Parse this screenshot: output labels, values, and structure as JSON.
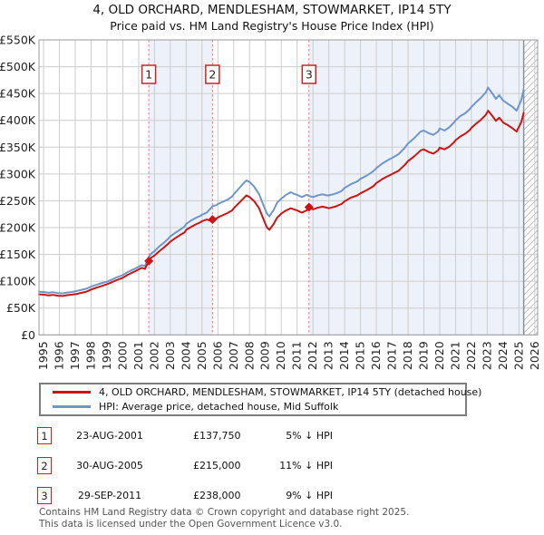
{
  "title": {
    "line1": "4, OLD ORCHARD, MENDLESHAM, STOWMARKET, IP14 5TY",
    "line2": "Price paid vs. HM Land Registry's House Price Index (HPI)"
  },
  "chart_data": {
    "type": "line",
    "unit": "GBP thousands",
    "x_domain": [
      1994.71,
      2026.18
    ],
    "y_domain": [
      0,
      550
    ],
    "grid": true,
    "x_ticks": [
      1995,
      1996,
      1997,
      1998,
      1999,
      2000,
      2001,
      2002,
      2003,
      2004,
      2005,
      2006,
      2007,
      2008,
      2009,
      2010,
      2011,
      2012,
      2013,
      2014,
      2015,
      2016,
      2017,
      2018,
      2019,
      2020,
      2021,
      2022,
      2023,
      2024,
      2025,
      2026
    ],
    "y_ticks": [
      {
        "v": 0,
        "label": "£0"
      },
      {
        "v": 50,
        "label": "£50K"
      },
      {
        "v": 100,
        "label": "£100K"
      },
      {
        "v": 150,
        "label": "£150K"
      },
      {
        "v": 200,
        "label": "£200K"
      },
      {
        "v": 250,
        "label": "£250K"
      },
      {
        "v": 300,
        "label": "£300K"
      },
      {
        "v": 350,
        "label": "£350K"
      },
      {
        "v": 400,
        "label": "£400K"
      },
      {
        "v": 450,
        "label": "£450K"
      },
      {
        "v": 500,
        "label": "£500K"
      },
      {
        "v": 550,
        "label": "£550K"
      }
    ],
    "series": [
      {
        "name": "HPI: Average price, detached house, Mid Suffolk",
        "color_key": "hpi",
        "points": [
          [
            1994.71,
            80.5
          ],
          [
            1995,
            80
          ],
          [
            1995.3,
            78.5
          ],
          [
            1995.6,
            79.5
          ],
          [
            1995.9,
            78
          ],
          [
            1996.2,
            77.5
          ],
          [
            1996.5,
            79
          ],
          [
            1996.8,
            80
          ],
          [
            1997.1,
            82
          ],
          [
            1997.4,
            84
          ],
          [
            1997.7,
            86
          ],
          [
            1998,
            90
          ],
          [
            1998.3,
            93
          ],
          [
            1998.6,
            96
          ],
          [
            1999,
            99
          ],
          [
            1999.3,
            103
          ],
          [
            1999.6,
            107
          ],
          [
            2000,
            111.5
          ],
          [
            2000.3,
            117
          ],
          [
            2000.6,
            121
          ],
          [
            2000.8,
            124
          ],
          [
            2001,
            127
          ],
          [
            2001.2,
            130
          ],
          [
            2001.4,
            128
          ],
          [
            2001.64,
            145
          ],
          [
            2001.8,
            152
          ],
          [
            2002,
            156
          ],
          [
            2002.3,
            165
          ],
          [
            2002.6,
            172
          ],
          [
            2002.9,
            180
          ],
          [
            2003,
            184
          ],
          [
            2003.3,
            190
          ],
          [
            2003.6,
            196
          ],
          [
            2003.9,
            202
          ],
          [
            2004,
            207
          ],
          [
            2004.3,
            213
          ],
          [
            2004.6,
            218
          ],
          [
            2004.9,
            222
          ],
          [
            2005,
            224
          ],
          [
            2005.3,
            228
          ],
          [
            2005.66,
            240
          ],
          [
            2005.9,
            242
          ],
          [
            2006,
            244
          ],
          [
            2006.3,
            248
          ],
          [
            2006.6,
            252
          ],
          [
            2006.9,
            258
          ],
          [
            2007,
            262
          ],
          [
            2007.3,
            272
          ],
          [
            2007.6,
            282
          ],
          [
            2007.8,
            288
          ],
          [
            2008,
            285
          ],
          [
            2008.3,
            276
          ],
          [
            2008.6,
            262
          ],
          [
            2008.9,
            240
          ],
          [
            2009.1,
            226
          ],
          [
            2009.25,
            221
          ],
          [
            2009.5,
            232
          ],
          [
            2009.75,
            247
          ],
          [
            2010,
            254
          ],
          [
            2010.3,
            261
          ],
          [
            2010.6,
            266
          ],
          [
            2010.8,
            263
          ],
          [
            2011,
            261
          ],
          [
            2011.3,
            257
          ],
          [
            2011.6,
            261
          ],
          [
            2011.75,
            259
          ],
          [
            2012,
            257
          ],
          [
            2012.3,
            260
          ],
          [
            2012.6,
            262
          ],
          [
            2012.9,
            260
          ],
          [
            2013,
            260
          ],
          [
            2013.4,
            263
          ],
          [
            2013.8,
            268
          ],
          [
            2014,
            274
          ],
          [
            2014.4,
            281
          ],
          [
            2014.8,
            286
          ],
          [
            2015,
            291
          ],
          [
            2015.4,
            297
          ],
          [
            2015.8,
            305
          ],
          [
            2016,
            311
          ],
          [
            2016.4,
            320
          ],
          [
            2016.8,
            327
          ],
          [
            2017,
            330
          ],
          [
            2017.4,
            337
          ],
          [
            2017.8,
            349
          ],
          [
            2018,
            357
          ],
          [
            2018.4,
            367
          ],
          [
            2018.8,
            379
          ],
          [
            2019,
            381
          ],
          [
            2019.3,
            376
          ],
          [
            2019.6,
            373
          ],
          [
            2019.9,
            379
          ],
          [
            2020,
            385
          ],
          [
            2020.3,
            381
          ],
          [
            2020.6,
            387
          ],
          [
            2020.9,
            396
          ],
          [
            2021,
            400
          ],
          [
            2021.3,
            408
          ],
          [
            2021.6,
            413
          ],
          [
            2021.9,
            421
          ],
          [
            2022,
            425
          ],
          [
            2022.3,
            434
          ],
          [
            2022.6,
            442
          ],
          [
            2022.9,
            452
          ],
          [
            2023.05,
            461
          ],
          [
            2023.3,
            451
          ],
          [
            2023.55,
            440
          ],
          [
            2023.75,
            447
          ],
          [
            2023.9,
            441
          ],
          [
            2024,
            437
          ],
          [
            2024.3,
            431
          ],
          [
            2024.6,
            425
          ],
          [
            2024.85,
            418
          ],
          [
            2025,
            428
          ],
          [
            2025.15,
            438
          ],
          [
            2025.3,
            457
          ]
        ]
      },
      {
        "name": "4, OLD ORCHARD, MENDLESHAM, STOWMARKET, IP14 5TY (detached house)",
        "color_key": "price",
        "points": [
          [
            1994.71,
            75.5
          ],
          [
            1995,
            75
          ],
          [
            1995.3,
            73.5
          ],
          [
            1995.6,
            74.5
          ],
          [
            1995.9,
            73
          ],
          [
            1996.2,
            72.5
          ],
          [
            1996.5,
            74
          ],
          [
            1996.8,
            75
          ],
          [
            1997.1,
            76.5
          ],
          [
            1997.4,
            78.5
          ],
          [
            1997.7,
            80.5
          ],
          [
            1998,
            84.5
          ],
          [
            1998.3,
            87.5
          ],
          [
            1998.6,
            90.5
          ],
          [
            1999,
            94.5
          ],
          [
            1999.3,
            98
          ],
          [
            1999.6,
            102
          ],
          [
            2000,
            106.5
          ],
          [
            2000.3,
            112
          ],
          [
            2000.6,
            116
          ],
          [
            2000.8,
            119
          ],
          [
            2001,
            122
          ],
          [
            2001.2,
            125
          ],
          [
            2001.4,
            123
          ],
          [
            2001.64,
            137.75
          ],
          [
            2001.8,
            144
          ],
          [
            2002,
            148
          ],
          [
            2002.3,
            156
          ],
          [
            2002.6,
            163
          ],
          [
            2002.9,
            171
          ],
          [
            2003,
            174
          ],
          [
            2003.3,
            180
          ],
          [
            2003.6,
            186
          ],
          [
            2003.9,
            191
          ],
          [
            2004,
            196
          ],
          [
            2004.3,
            201
          ],
          [
            2004.6,
            206
          ],
          [
            2004.9,
            210
          ],
          [
            2005,
            212
          ],
          [
            2005.3,
            215
          ],
          [
            2005.5,
            213
          ],
          [
            2005.66,
            215
          ],
          [
            2005.9,
            217
          ],
          [
            2006,
            219
          ],
          [
            2006.3,
            223
          ],
          [
            2006.6,
            227
          ],
          [
            2006.9,
            232
          ],
          [
            2007,
            236
          ],
          [
            2007.3,
            245
          ],
          [
            2007.6,
            254
          ],
          [
            2007.8,
            260
          ],
          [
            2008,
            257
          ],
          [
            2008.3,
            249
          ],
          [
            2008.6,
            236
          ],
          [
            2008.9,
            214
          ],
          [
            2009.1,
            200
          ],
          [
            2009.25,
            196
          ],
          [
            2009.5,
            206
          ],
          [
            2009.75,
            219
          ],
          [
            2010,
            226
          ],
          [
            2010.3,
            232
          ],
          [
            2010.6,
            236
          ],
          [
            2010.8,
            234
          ],
          [
            2011,
            232
          ],
          [
            2011.3,
            228
          ],
          [
            2011.6,
            232
          ],
          [
            2011.75,
            238
          ],
          [
            2012,
            234
          ],
          [
            2012.3,
            237
          ],
          [
            2012.6,
            239
          ],
          [
            2012.9,
            237
          ],
          [
            2013,
            236
          ],
          [
            2013.4,
            239
          ],
          [
            2013.8,
            244
          ],
          [
            2014,
            249
          ],
          [
            2014.4,
            256
          ],
          [
            2014.8,
            260
          ],
          [
            2015,
            264
          ],
          [
            2015.4,
            270
          ],
          [
            2015.8,
            277
          ],
          [
            2016,
            283
          ],
          [
            2016.4,
            291
          ],
          [
            2016.8,
            297
          ],
          [
            2017,
            300
          ],
          [
            2017.4,
            306
          ],
          [
            2017.8,
            317
          ],
          [
            2018,
            324
          ],
          [
            2018.4,
            333
          ],
          [
            2018.8,
            344
          ],
          [
            2019,
            346
          ],
          [
            2019.3,
            341
          ],
          [
            2019.6,
            338
          ],
          [
            2019.9,
            344
          ],
          [
            2020,
            349
          ],
          [
            2020.3,
            346
          ],
          [
            2020.6,
            351
          ],
          [
            2020.9,
            359
          ],
          [
            2021,
            363
          ],
          [
            2021.3,
            370
          ],
          [
            2021.6,
            375
          ],
          [
            2021.9,
            382
          ],
          [
            2022,
            386
          ],
          [
            2022.3,
            394
          ],
          [
            2022.6,
            401
          ],
          [
            2022.9,
            410
          ],
          [
            2023.05,
            418
          ],
          [
            2023.3,
            409
          ],
          [
            2023.55,
            399
          ],
          [
            2023.75,
            405
          ],
          [
            2023.9,
            400
          ],
          [
            2024,
            396
          ],
          [
            2024.3,
            391
          ],
          [
            2024.6,
            385
          ],
          [
            2024.85,
            379
          ],
          [
            2025,
            388
          ],
          [
            2025.15,
            397
          ],
          [
            2025.3,
            414
          ]
        ]
      }
    ],
    "sales": [
      {
        "num": "1",
        "year": 2001.64,
        "price_k": 137.75
      },
      {
        "num": "2",
        "year": 2005.66,
        "price_k": 215
      },
      {
        "num": "3",
        "year": 2011.75,
        "price_k": 238
      }
    ],
    "bands": [
      [
        2001.64,
        2005.66
      ],
      [
        2011.75,
        2025.3
      ]
    ],
    "hatch_from": 2025.3
  },
  "legend": {
    "items": [
      {
        "label": "4, OLD ORCHARD, MENDLESHAM, STOWMARKET, IP14 5TY (detached house)",
        "color_key": "price"
      },
      {
        "label": "HPI: Average price, detached house, Mid Suffolk",
        "color_key": "hpi"
      }
    ]
  },
  "sales_table": {
    "rows": [
      {
        "num": "1",
        "date": "23-AUG-2001",
        "price": "£137,750",
        "vs_hpi": "5% ↓ HPI"
      },
      {
        "num": "2",
        "date": "30-AUG-2005",
        "price": "£215,000",
        "vs_hpi": "11% ↓ HPI"
      },
      {
        "num": "3",
        "date": "29-SEP-2011",
        "price": "£238,000",
        "vs_hpi": "9% ↓ HPI"
      }
    ]
  },
  "footer": {
    "line1": "Contains HM Land Registry data © Crown copyright and database right 2025.",
    "line2": "This data is licensed under the Open Government Licence v3.0."
  },
  "colors": {
    "price": "#cc1414",
    "hpi": "#6e96c8",
    "band": "#edf2fa",
    "grid": "#cccccc",
    "border": "#999999",
    "dash": "#ee7777",
    "sale_box_border": "#cc2222",
    "hatch": "#b9bfc9",
    "hatch_edge": "#8a9098",
    "axis_text": "#222222",
    "text": "#111111",
    "footer_text": "#555555"
  }
}
